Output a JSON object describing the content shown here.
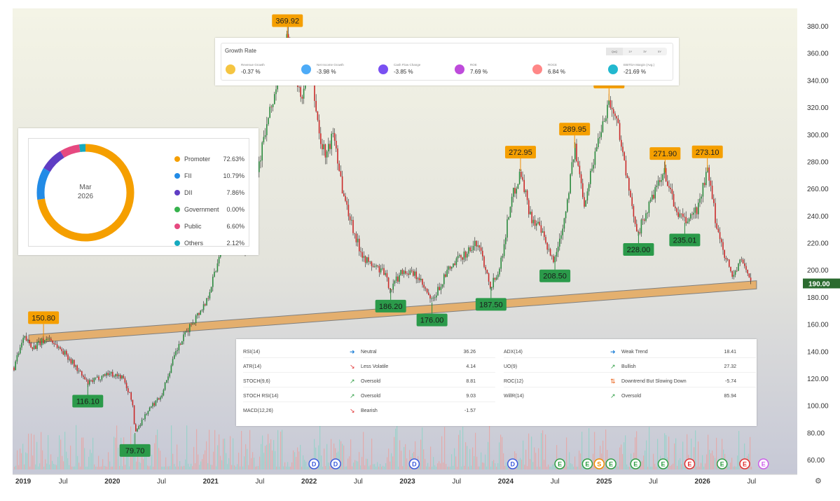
{
  "chart_data": {
    "type": "candlestick",
    "x_ticks": [
      "2019",
      "Jul",
      "2020",
      "Jul",
      "2021",
      "Jul",
      "2022",
      "Jul",
      "2023",
      "Jul",
      "2024",
      "Jul",
      "2025",
      "Jul",
      "2026",
      "Jul"
    ],
    "y_ticks": [
      "380.00",
      "360.00",
      "340.00",
      "320.00",
      "300.00",
      "280.00",
      "260.00",
      "240.00",
      "220.00",
      "200.00",
      "180.00",
      "160.00",
      "140.00",
      "120.00",
      "100.00",
      "80.00",
      "60.00"
    ],
    "ylim": [
      50,
      385
    ],
    "last_price": "190.00",
    "price_path": [
      [
        2019.0,
        128
      ],
      [
        2019.1,
        150
      ],
      [
        2019.2,
        143
      ],
      [
        2019.35,
        150
      ],
      [
        2019.55,
        136
      ],
      [
        2019.75,
        116
      ],
      [
        2019.95,
        124
      ],
      [
        2020.1,
        121
      ],
      [
        2020.2,
        104
      ],
      [
        2020.23,
        80
      ],
      [
        2020.35,
        95
      ],
      [
        2020.5,
        108
      ],
      [
        2020.65,
        140
      ],
      [
        2020.8,
        160
      ],
      [
        2020.95,
        176
      ],
      [
        2021.05,
        200
      ],
      [
        2021.15,
        230
      ],
      [
        2021.25,
        225
      ],
      [
        2021.35,
        215
      ],
      [
        2021.45,
        265
      ],
      [
        2021.55,
        300
      ],
      [
        2021.65,
        330
      ],
      [
        2021.78,
        370
      ],
      [
        2021.85,
        345
      ],
      [
        2021.92,
        325
      ],
      [
        2022.0,
        364
      ],
      [
        2022.05,
        330
      ],
      [
        2022.12,
        292
      ],
      [
        2022.18,
        285
      ],
      [
        2022.25,
        302
      ],
      [
        2022.35,
        255
      ],
      [
        2022.5,
        218
      ],
      [
        2022.6,
        205
      ],
      [
        2022.75,
        199
      ],
      [
        2022.83,
        186
      ],
      [
        2022.95,
        200
      ],
      [
        2023.1,
        195
      ],
      [
        2023.25,
        176
      ],
      [
        2023.4,
        198
      ],
      [
        2023.55,
        210
      ],
      [
        2023.72,
        220
      ],
      [
        2023.85,
        188
      ],
      [
        2023.95,
        205
      ],
      [
        2024.05,
        250
      ],
      [
        2024.15,
        273
      ],
      [
        2024.25,
        240
      ],
      [
        2024.35,
        230
      ],
      [
        2024.45,
        210
      ],
      [
        2024.5,
        208
      ],
      [
        2024.6,
        240
      ],
      [
        2024.7,
        290
      ],
      [
        2024.8,
        250
      ],
      [
        2024.95,
        300
      ],
      [
        2025.05,
        325
      ],
      [
        2025.15,
        305
      ],
      [
        2025.28,
        245
      ],
      [
        2025.35,
        228
      ],
      [
        2025.5,
        255
      ],
      [
        2025.62,
        272
      ],
      [
        2025.72,
        245
      ],
      [
        2025.82,
        235
      ],
      [
        2025.95,
        245
      ],
      [
        2026.05,
        273
      ],
      [
        2026.15,
        230
      ],
      [
        2026.3,
        195
      ],
      [
        2026.4,
        207
      ],
      [
        2026.45,
        200
      ],
      [
        2026.5,
        190
      ]
    ],
    "pivot_highs": [
      {
        "label": "150.80",
        "x": 2019.3,
        "y": 150.8
      },
      {
        "label": "369.92",
        "x": 2021.78,
        "y": 369.92
      },
      {
        "label": "272.95",
        "x": 2024.15,
        "y": 272.95
      },
      {
        "label": "289.95",
        "x": 2024.7,
        "y": 289.95
      },
      {
        "label": "324.60",
        "x": 2025.05,
        "y": 324.6
      },
      {
        "label": "271.90",
        "x": 2025.62,
        "y": 271.9
      },
      {
        "label": "273.10",
        "x": 2026.05,
        "y": 273.1
      }
    ],
    "pivot_lows": [
      {
        "label": "116.10",
        "x": 2019.75,
        "y": 116.1
      },
      {
        "label": "79.70",
        "x": 2020.23,
        "y": 79.7
      },
      {
        "label": "186.20",
        "x": 2022.83,
        "y": 186.2
      },
      {
        "label": "176.00",
        "x": 2023.25,
        "y": 176.0
      },
      {
        "label": "187.50",
        "x": 2023.85,
        "y": 187.5
      },
      {
        "label": "208.50",
        "x": 2024.5,
        "y": 208.5
      },
      {
        "label": "228.00",
        "x": 2025.35,
        "y": 228.0
      },
      {
        "label": "235.01",
        "x": 2025.82,
        "y": 235.01
      }
    ],
    "support_band": {
      "x0": 2019.15,
      "x1": 2026.55,
      "lower0": 146,
      "upper0": 152,
      "lower1": 186,
      "upper1": 192
    },
    "event_markers": [
      {
        "letter": "D",
        "x": 2022.05,
        "color": "#3b5bdb"
      },
      {
        "letter": "D",
        "x": 2022.27,
        "color": "#3b5bdb"
      },
      {
        "letter": "D",
        "x": 2023.07,
        "color": "#3b5bdb"
      },
      {
        "letter": "D",
        "x": 2024.07,
        "color": "#3b5bdb"
      },
      {
        "letter": "E",
        "x": 2024.55,
        "color": "#2f9e44"
      },
      {
        "letter": "E",
        "x": 2024.83,
        "color": "#2f9e44"
      },
      {
        "letter": "S",
        "x": 2024.95,
        "color": "#f08c00"
      },
      {
        "letter": "E",
        "x": 2025.07,
        "color": "#2f9e44"
      },
      {
        "letter": "E",
        "x": 2025.32,
        "color": "#2f9e44"
      },
      {
        "letter": "E",
        "x": 2025.6,
        "color": "#2f9e44"
      },
      {
        "letter": "E",
        "x": 2025.87,
        "color": "#e03131"
      },
      {
        "letter": "E",
        "x": 2026.2,
        "color": "#2f9e44"
      },
      {
        "letter": "E",
        "x": 2026.43,
        "color": "#e03131"
      },
      {
        "letter": "E",
        "x": 2026.62,
        "color": "#cc5de8"
      }
    ]
  },
  "growth": {
    "title": "Growth Rate",
    "tabs": [
      "QoQ",
      "1Y",
      "3Y",
      "5Y"
    ],
    "metrics": [
      {
        "label": "Revenue Growth",
        "value": "-0.37 %",
        "color": "#f5c542"
      },
      {
        "label": "Net Income Growth",
        "value": "-3.98 %",
        "color": "#4dabf7"
      },
      {
        "label": "Cash Flow Change",
        "value": "-3.85 %",
        "color": "#7950f2"
      },
      {
        "label": "ROE",
        "value": "7.69 %",
        "color": "#be4bdb"
      },
      {
        "label": "ROCE",
        "value": "6.84 %",
        "color": "#ff8787"
      },
      {
        "label": "EBITDA Margin (Avg.)",
        "value": "-21.69 %",
        "color": "#22b8cf"
      }
    ]
  },
  "holding": {
    "center_line1": "Mar",
    "center_line2": "2026",
    "items": [
      {
        "label": "Promoter",
        "value": "72.63%",
        "pct": 72.63,
        "color": "#f59f00"
      },
      {
        "label": "FII",
        "value": "10.79%",
        "pct": 10.79,
        "color": "#228be6"
      },
      {
        "label": "DII",
        "value": "7.86%",
        "pct": 7.86,
        "color": "#5f3dc4"
      },
      {
        "label": "Government",
        "value": "0.00%",
        "pct": 0.0,
        "color": "#37b24d"
      },
      {
        "label": "Public",
        "value": "6.60%",
        "pct": 6.6,
        "color": "#e64980"
      },
      {
        "label": "Others",
        "value": "2.12%",
        "pct": 2.12,
        "color": "#15aabf"
      }
    ]
  },
  "indicators": {
    "left": [
      {
        "name": "RSI(14)",
        "signal": "Neutral",
        "value": "36.26",
        "icon": "➜",
        "icon_color": "#1c7ed6"
      },
      {
        "name": "ATR(14)",
        "signal": "Less Volatile",
        "value": "4.14",
        "icon": "↘",
        "icon_color": "#e03131"
      },
      {
        "name": "STOCH(9,6)",
        "signal": "Oversold",
        "value": "8.81",
        "icon": "↗",
        "icon_color": "#2f9e44"
      },
      {
        "name": "STOCH RSI(14)",
        "signal": "Oversold",
        "value": "9.03",
        "icon": "↗",
        "icon_color": "#2f9e44"
      },
      {
        "name": "MACD(12,26)",
        "signal": "Bearish",
        "value": "-1.57",
        "icon": "↘",
        "icon_color": "#e03131"
      }
    ],
    "right": [
      {
        "name": "ADX(14)",
        "signal": "Weak Trend",
        "value": "18.41",
        "icon": "➜",
        "icon_color": "#1c7ed6"
      },
      {
        "name": "UO(9)",
        "signal": "Bullish",
        "value": "27.32",
        "icon": "↗",
        "icon_color": "#2f9e44"
      },
      {
        "name": "ROC(12)",
        "signal": "Downtrend But Slowing Down",
        "value": "-5.74",
        "icon": "⇅",
        "icon_color": "#e8590c"
      },
      {
        "name": "WillR(14)",
        "signal": "Oversold",
        "value": "85.94",
        "icon": "↗",
        "icon_color": "#2f9e44"
      }
    ]
  }
}
